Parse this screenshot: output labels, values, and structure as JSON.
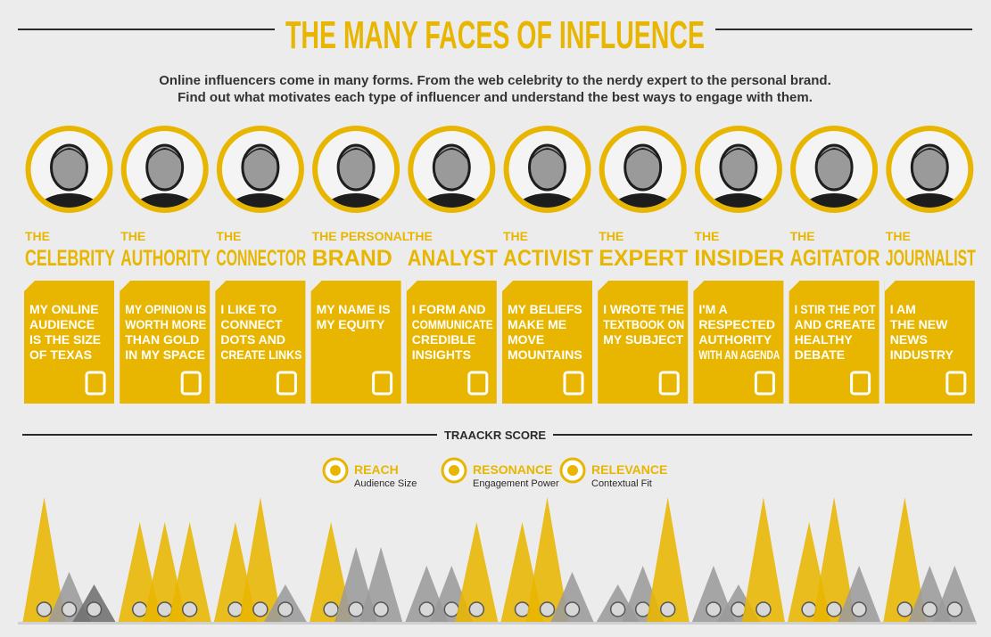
{
  "header": {
    "title": "THE MANY FACES OF INFLUENCE",
    "intro": [
      "Online influencers come in many forms. From the web celebrity to the nerdy expert to the personal brand.",
      "Find out what motivates each type of influencer and understand the best ways to engage with them."
    ]
  },
  "influencers": [
    {
      "prefix": "THE",
      "name": "CELEBRITY",
      "quote": [
        "MY ONLINE",
        "AUDIENCE",
        "IS THE SIZE",
        "OF TEXAS"
      ],
      "scores": [
        10,
        4,
        3
      ],
      "score_colors": [
        "#e8b600",
        "#9b9b9b",
        "#6f6f6f"
      ]
    },
    {
      "prefix": "THE",
      "name": "AUTHORITY",
      "quote": [
        "MY OPINION IS",
        "WORTH MORE",
        "THAN GOLD",
        "IN MY SPACE"
      ],
      "scores": [
        8,
        8,
        8
      ],
      "score_colors": [
        "#e8b600",
        "#e8b600",
        "#e8b600"
      ]
    },
    {
      "prefix": "THE",
      "name": "CONNECTOR",
      "quote": [
        "I LIKE TO",
        "CONNECT",
        "DOTS AND",
        "CREATE LINKS"
      ],
      "scores": [
        8,
        10,
        3
      ],
      "score_colors": [
        "#e8b600",
        "#e8b600",
        "#9b9b9b"
      ]
    },
    {
      "prefix": "THE PERSONAL",
      "name": "BRAND",
      "quote": [
        "MY NAME IS",
        "MY EQUITY"
      ],
      "scores": [
        8,
        6,
        6
      ],
      "score_colors": [
        "#e8b600",
        "#9b9b9b",
        "#9b9b9b"
      ]
    },
    {
      "prefix": "THE",
      "name": "ANALYST",
      "quote": [
        "I FORM AND",
        "COMMUNICATE",
        "CREDIBLE",
        "INSIGHTS"
      ],
      "scores": [
        4.5,
        4.5,
        8
      ],
      "score_colors": [
        "#9b9b9b",
        "#9b9b9b",
        "#e8b600"
      ]
    },
    {
      "prefix": "THE",
      "name": "ACTIVIST",
      "quote": [
        "MY BELIEFS",
        "MAKE ME",
        "MOVE",
        "MOUNTAINS"
      ],
      "scores": [
        8,
        10,
        4
      ],
      "score_colors": [
        "#e8b600",
        "#e8b600",
        "#9b9b9b"
      ]
    },
    {
      "prefix": "THE",
      "name": "EXPERT",
      "quote": [
        "I WROTE THE",
        "TEXTBOOK ON",
        "MY SUBJECT"
      ],
      "scores": [
        3,
        4.5,
        10
      ],
      "score_colors": [
        "#9b9b9b",
        "#9b9b9b",
        "#e8b600"
      ]
    },
    {
      "prefix": "THE",
      "name": "INSIDER",
      "quote": [
        "I'M A",
        "RESPECTED",
        "AUTHORITY",
        "WITH AN AGENDA"
      ],
      "scores": [
        4.5,
        3,
        10
      ],
      "score_colors": [
        "#9b9b9b",
        "#9b9b9b",
        "#e8b600"
      ]
    },
    {
      "prefix": "THE",
      "name": "AGITATOR",
      "quote": [
        "I STIR THE POT",
        "AND CREATE",
        "HEALTHY",
        "DEBATE"
      ],
      "scores": [
        8,
        10,
        4.5
      ],
      "score_colors": [
        "#e8b600",
        "#e8b600",
        "#9b9b9b"
      ]
    },
    {
      "prefix": "THE",
      "name": "JOURNALIST",
      "quote": [
        "I AM",
        "THE NEW",
        "NEWS",
        "INDUSTRY"
      ],
      "scores": [
        10,
        4.5,
        4.5
      ],
      "score_colors": [
        "#e8b600",
        "#9b9b9b",
        "#9b9b9b"
      ]
    }
  ],
  "score": {
    "title": "TRAACKR SCORE",
    "legend": [
      {
        "label": "REACH",
        "description": "Audience Size"
      },
      {
        "label": "RESONANCE",
        "description": "Engagement Power"
      },
      {
        "label": "RELEVANCE",
        "description": "Contextual Fit"
      }
    ]
  }
}
